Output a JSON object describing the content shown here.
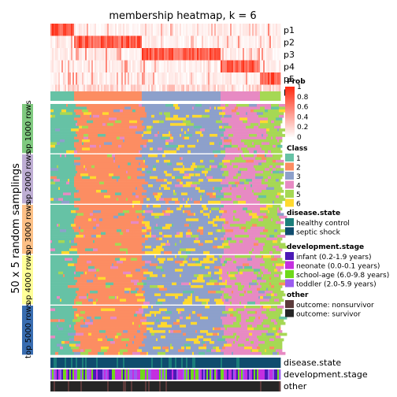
{
  "chart_data": {
    "type": "heatmap",
    "title": "membership heatmap, k = 6",
    "y_axis_label": "50 x 5 random samplings",
    "prob_rows": [
      "p1",
      "p2",
      "p3",
      "p4",
      "p5",
      "p6"
    ],
    "class_order_by_column": [
      1,
      2,
      3,
      4,
      5
    ],
    "class_column_fractions": [
      0.1,
      0.3,
      0.34,
      0.17,
      0.16
    ],
    "row_groups": [
      {
        "label": "top 1000 rows",
        "color": "#7fc97f"
      },
      {
        "label": "top 2000 rows",
        "color": "#beaed4"
      },
      {
        "label": "top 3000 rows",
        "color": "#fdc086"
      },
      {
        "label": "top 4000 rows",
        "color": "#ffff99"
      },
      {
        "label": "top 5000 rows",
        "color": "#386cb0"
      }
    ],
    "bottom_annotations": [
      "disease.state",
      "development.stage",
      "other"
    ],
    "legend": {
      "prob_title": "Prob",
      "prob_ticks": [
        "1",
        "0.8",
        "0.6",
        "0.4",
        "0.2",
        "0"
      ],
      "class_title": "Class",
      "classes": [
        {
          "label": "1",
          "color": "#66c2a5"
        },
        {
          "label": "2",
          "color": "#fc8d62"
        },
        {
          "label": "3",
          "color": "#8da0cb"
        },
        {
          "label": "4",
          "color": "#e78ac3"
        },
        {
          "label": "5",
          "color": "#a6d854"
        },
        {
          "label": "6",
          "color": "#ffd92f"
        }
      ],
      "disease_title": "disease.state",
      "disease": [
        {
          "label": "healthy control",
          "color": "#1b7e7a"
        },
        {
          "label": "septic shock",
          "color": "#0f4c6e"
        }
      ],
      "development_title": "development.stage",
      "development": [
        {
          "label": "infant (0.2-1.9 years)",
          "color": "#4b1ab6"
        },
        {
          "label": "neonate (0.0-0.1 years)",
          "color": "#c42fe0"
        },
        {
          "label": "school-age (6.0-9.8 years)",
          "color": "#6fd81b"
        },
        {
          "label": "toddler (2.0-5.9 years)",
          "color": "#9b5cf0"
        }
      ],
      "other_title": "other",
      "other": [
        {
          "label": "outcome: nonsurvivor",
          "color": "#5c3b3b"
        },
        {
          "label": "outcome: survivor",
          "color": "#262626"
        }
      ]
    }
  }
}
